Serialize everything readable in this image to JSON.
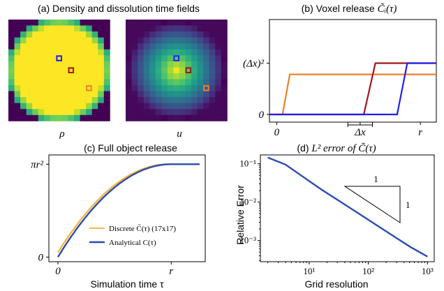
{
  "colors": {
    "orange": "#e8822a",
    "darkred": "#a0161b",
    "blue": "#1f1ff0",
    "navy": "#2a4cb0",
    "legend_orange": "#f5b135"
  },
  "chart_data": [
    {
      "panel": "a",
      "type": "heatmap",
      "title": "(a) Density and dissolution time fields",
      "grid_size": [
        17,
        17
      ],
      "maps": [
        {
          "label": "ρ",
          "colormap": "viridis",
          "field": "density: 1 inside disk, 0 outside"
        },
        {
          "label": "u",
          "colormap": "viridis",
          "field": "dissolution time: 0 at center, increasing to the boundary"
        }
      ],
      "highlighted_voxels": [
        {
          "color": "blue",
          "col": 8,
          "row": 6
        },
        {
          "color": "darkred",
          "col": 10,
          "row": 8
        },
        {
          "color": "orange",
          "col": 13,
          "row": 11
        }
      ]
    },
    {
      "panel": "b",
      "type": "line",
      "title_prefix": "(b) Voxel release ",
      "title_math": "C̃ᵢ(τ)",
      "xtick_labels": [
        "0",
        "Δx",
        "r"
      ],
      "ytick_labels": [
        "0",
        "(Δx)²"
      ],
      "ylim": [
        -0.15,
        1.85
      ],
      "xlim": [
        -0.05,
        1.1
      ],
      "series": [
        {
          "color": "orange",
          "x": [
            0,
            0.04,
            0.09,
            1.1
          ],
          "y": [
            0,
            0,
            0.78,
            0.78
          ]
        },
        {
          "color": "darkred",
          "x": [
            -0.05,
            0.6,
            0.68,
            1.1
          ],
          "y": [
            0,
            0,
            1.0,
            1.0
          ]
        },
        {
          "color": "blue",
          "x": [
            -0.05,
            0.83,
            0.9,
            1.1
          ],
          "y": [
            0,
            0,
            1.0,
            1.0
          ]
        }
      ]
    },
    {
      "panel": "c",
      "type": "line",
      "title": "(c) Full object release",
      "xlabel": "Simulation time τ",
      "xtick_labels": [
        "0",
        "r"
      ],
      "ytick_labels": [
        "0",
        "πr²"
      ],
      "xlim": [
        -0.08,
        1.3
      ],
      "ylim": [
        -0.05,
        1.1
      ],
      "series": [
        {
          "name": "Discrete C̃(τ) (17x17)",
          "color": "legend_orange",
          "style": "discrete"
        },
        {
          "name": "Analytical C(τ)",
          "color": "navy",
          "style": "analytical"
        }
      ]
    },
    {
      "panel": "d",
      "type": "line",
      "title_prefix": "(d) ",
      "title_math": "L² error of C̃(τ)",
      "xlabel": "Grid resolution",
      "ylabel": "Relative Error",
      "xscale": "log",
      "yscale": "log",
      "xlim": [
        1.5,
        1300
      ],
      "ylim": [
        0.00028,
        0.17
      ],
      "xtick_labels": [
        "10¹",
        "10²",
        "10³"
      ],
      "ytick_labels": [
        "10⁻³",
        "10⁻²",
        "10⁻¹"
      ],
      "series": [
        {
          "color": "navy",
          "x": [
            2,
            4,
            8,
            16,
            32,
            64,
            128,
            256,
            512,
            1000
          ],
          "y": [
            0.145,
            0.095,
            0.045,
            0.0215,
            0.0108,
            0.0054,
            0.0027,
            0.00135,
            0.00068,
            0.00038
          ]
        }
      ],
      "slope_triangle": {
        "label_run": "1",
        "label_rise": "1"
      }
    }
  ]
}
